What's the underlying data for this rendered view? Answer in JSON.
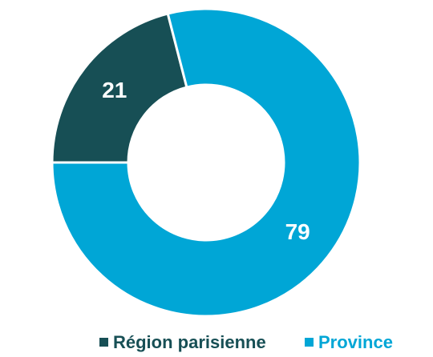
{
  "chart_data": {
    "type": "donut",
    "categories": [
      "Région parisienne",
      "Province"
    ],
    "values": [
      21,
      79
    ],
    "colors": [
      "#174f55",
      "#00a6d6"
    ],
    "legend": "bottom"
  }
}
